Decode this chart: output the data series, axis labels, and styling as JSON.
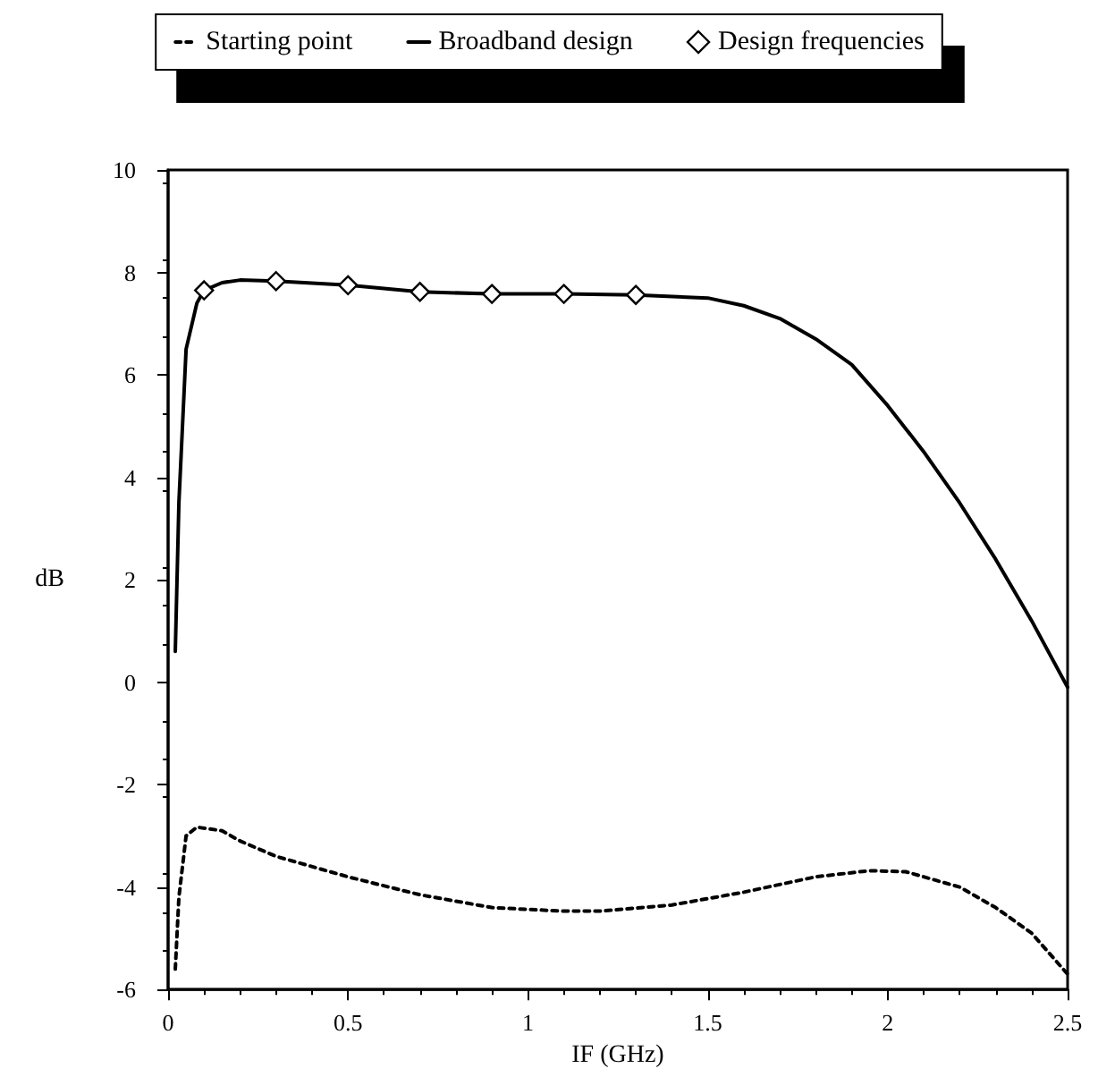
{
  "chart_data": {
    "type": "line",
    "xlabel": "IF (GHz)",
    "ylabel": "dB",
    "xlim": [
      0,
      2.5
    ],
    "xticks": [
      0,
      0.5,
      1,
      1.5,
      2,
      2.5
    ],
    "ylim": [
      -6,
      10
    ],
    "yticks": [
      -6,
      -4,
      -2,
      0,
      2,
      4,
      6,
      8,
      10
    ],
    "grid": false,
    "legend": "top",
    "series": [
      {
        "name": "Starting point",
        "color": "#000000",
        "line_style": "dashed",
        "marker": "none",
        "x": [
          0.02,
          0.03,
          0.05,
          0.08,
          0.15,
          0.2,
          0.3,
          0.5,
          0.7,
          0.9,
          1.1,
          1.2,
          1.4,
          1.6,
          1.8,
          1.95,
          2.05,
          2.2,
          2.3,
          2.4,
          2.5
        ],
        "values": [
          -5.6,
          -4.2,
          -3.0,
          -2.83,
          -2.9,
          -3.1,
          -3.4,
          -3.8,
          -4.15,
          -4.4,
          -4.47,
          -4.47,
          -4.35,
          -4.1,
          -3.8,
          -3.68,
          -3.7,
          -4.0,
          -4.4,
          -4.9,
          -5.7
        ]
      },
      {
        "name": "Broadband design",
        "color": "#000000",
        "line_style": "solid",
        "marker": "none",
        "x": [
          0.02,
          0.03,
          0.05,
          0.08,
          0.1,
          0.15,
          0.2,
          0.3,
          0.5,
          0.7,
          0.9,
          1.1,
          1.3,
          1.5,
          1.6,
          1.7,
          1.8,
          1.9,
          2.0,
          2.1,
          2.2,
          2.3,
          2.4,
          2.5
        ],
        "values": [
          0.6,
          3.5,
          6.5,
          7.4,
          7.65,
          7.8,
          7.85,
          7.83,
          7.75,
          7.62,
          7.58,
          7.58,
          7.56,
          7.5,
          7.35,
          7.1,
          6.7,
          6.2,
          5.4,
          4.5,
          3.5,
          2.4,
          1.2,
          -0.1
        ]
      },
      {
        "name": "Design frequencies",
        "type": "scatter",
        "color": "#000000",
        "marker": "diamond",
        "x": [
          0.1,
          0.3,
          0.5,
          0.7,
          0.9,
          1.1,
          1.3
        ],
        "values": [
          7.65,
          7.83,
          7.75,
          7.62,
          7.58,
          7.58,
          7.56
        ]
      }
    ]
  }
}
